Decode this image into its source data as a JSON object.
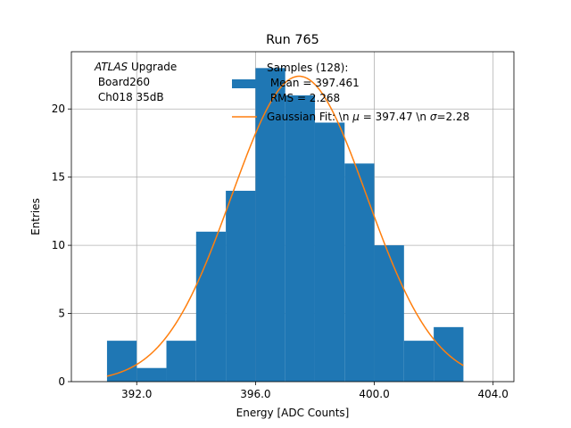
{
  "chart_data": {
    "type": "bar",
    "title": "Run 765",
    "xlabel": "Energy [ADC Counts]",
    "ylabel": "Entries",
    "xlim": [
      389.8,
      404.7
    ],
    "ylim": [
      0,
      24.2
    ],
    "xticks": [
      392,
      396,
      400,
      404
    ],
    "xtick_labels": [
      "392.0",
      "396.0",
      "400.0",
      "404.0"
    ],
    "yticks": [
      0,
      5,
      10,
      15,
      20
    ],
    "ytick_labels": [
      "0",
      "5",
      "10",
      "15",
      "20"
    ],
    "grid": true,
    "bin_edges": [
      391,
      392,
      393,
      394,
      395,
      396,
      397,
      398,
      399,
      400,
      401,
      402,
      403
    ],
    "counts": [
      3,
      1,
      3,
      11,
      14,
      23,
      21,
      19,
      16,
      10,
      3,
      4
    ],
    "hist_color": "#1f77b4",
    "fit": {
      "amplitude": 22.4,
      "mu": 397.47,
      "sigma": 2.28,
      "x_range": [
        391,
        403
      ],
      "color": "#ff7f0e"
    },
    "annotation": {
      "atlas": "ATLAS",
      "upgrade": " Upgrade",
      "line2": " Board260",
      "line3": " Ch018 35dB"
    },
    "legend": {
      "placement": "top-right",
      "hist_line1": "Samples (128):",
      "hist_line2": " Mean = 397.461",
      "hist_line3": " RMS = 2.268",
      "fit_prefix": "Gaussian Fit: \\n ",
      "fit_mu_sym": "μ",
      "fit_mu_val": " = 397.47 \\n ",
      "fit_sigma_sym": "σ",
      "fit_sigma_val": "=2.28"
    }
  }
}
